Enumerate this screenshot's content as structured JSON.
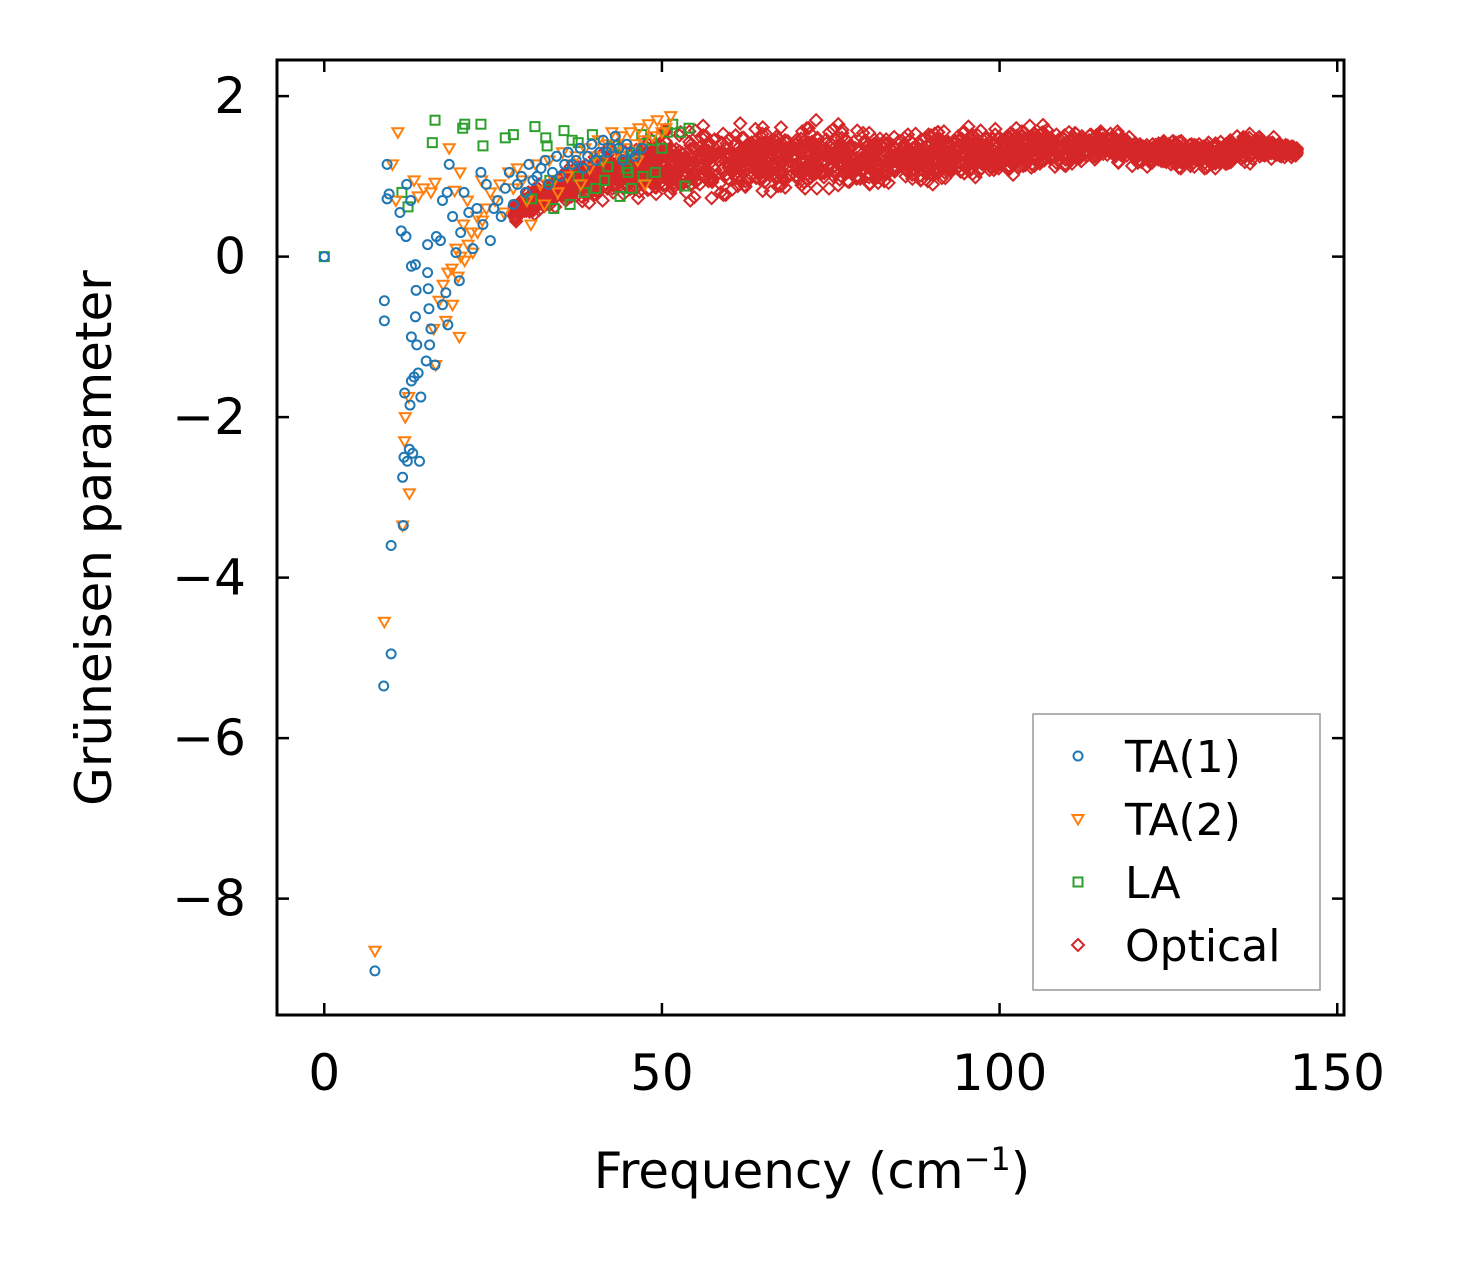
{
  "chart_data": {
    "type": "scatter",
    "xlabel": "Frequency (cm",
    "xlabel_sup": "−1",
    "xlabel_tail": ")",
    "ylabel": "Grüneisen parameter",
    "xlim": [
      -7,
      151
    ],
    "ylim": [
      -9.45,
      2.45
    ],
    "xticks": [
      0,
      50,
      100,
      150
    ],
    "xtick_labels": [
      "0",
      "50",
      "100",
      "150"
    ],
    "yticks": [
      2,
      0,
      -2,
      -4,
      -6,
      -8
    ],
    "ytick_labels": [
      "2",
      "0",
      "−2",
      "−4",
      "−6",
      "−8"
    ],
    "legend_position": "lower-right",
    "series": [
      {
        "name": "TA(1)",
        "marker": "circle",
        "color": "#1f77b4",
        "points": [
          [
            0,
            0
          ],
          [
            7.5,
            -8.9
          ],
          [
            8.8,
            -5.35
          ],
          [
            9.9,
            -4.95
          ],
          [
            9.9,
            -3.6
          ],
          [
            11.7,
            -3.35
          ],
          [
            8.9,
            -0.55
          ],
          [
            8.9,
            -0.8
          ],
          [
            9.3,
            1.15
          ],
          [
            9.3,
            0.72
          ],
          [
            9.6,
            0.78
          ],
          [
            11.2,
            0.55
          ],
          [
            11.4,
            0.32
          ],
          [
            12.1,
            0.25
          ],
          [
            12.2,
            0.9
          ],
          [
            12.8,
            0.7
          ],
          [
            11.9,
            -1.7
          ],
          [
            12.9,
            -1.55
          ],
          [
            12.7,
            -1.85
          ],
          [
            13.3,
            -1.5
          ],
          [
            13.9,
            -1.45
          ],
          [
            14.3,
            -1.75
          ],
          [
            12.9,
            -1.0
          ],
          [
            13.7,
            -1.1
          ],
          [
            13.5,
            -0.75
          ],
          [
            13.6,
            -0.42
          ],
          [
            13.5,
            -0.1
          ],
          [
            12.9,
            -0.12
          ],
          [
            11.8,
            -2.5
          ],
          [
            11.6,
            -2.75
          ],
          [
            12.3,
            -2.55
          ],
          [
            12.6,
            -2.4
          ],
          [
            13.1,
            -2.45
          ],
          [
            14.1,
            -2.55
          ],
          [
            15.1,
            -1.3
          ],
          [
            15.6,
            -1.1
          ],
          [
            15.8,
            -0.9
          ],
          [
            16.4,
            -1.35
          ],
          [
            15.4,
            -0.4
          ],
          [
            15.3,
            0.15
          ],
          [
            15.3,
            -0.2
          ],
          [
            15.5,
            -0.65
          ],
          [
            16.6,
            0.25
          ],
          [
            17.2,
            0.2
          ],
          [
            17.5,
            0.7
          ],
          [
            18.2,
            0.8
          ],
          [
            18.5,
            1.15
          ],
          [
            17.5,
            -0.6
          ],
          [
            18.0,
            -0.45
          ],
          [
            18.3,
            -0.85
          ],
          [
            19.0,
            0.5
          ],
          [
            19.5,
            0.05
          ],
          [
            20.0,
            -0.3
          ],
          [
            20.2,
            0.3
          ],
          [
            20.7,
            0.8
          ],
          [
            21.4,
            0.55
          ],
          [
            22.0,
            0.1
          ],
          [
            22.6,
            0.6
          ],
          [
            23.2,
            1.05
          ],
          [
            23.5,
            0.4
          ],
          [
            24.0,
            0.9
          ],
          [
            24.6,
            0.2
          ],
          [
            25.1,
            0.6
          ],
          [
            25.7,
            0.7
          ],
          [
            26.2,
            0.5
          ],
          [
            26.8,
            0.85
          ],
          [
            27.4,
            1.05
          ],
          [
            28.0,
            0.65
          ],
          [
            28.6,
            0.9
          ],
          [
            29.2,
            1.0
          ],
          [
            29.8,
            0.8
          ],
          [
            30.3,
            1.15
          ],
          [
            30.9,
            0.95
          ],
          [
            31.5,
            1.0
          ],
          [
            32.1,
            1.1
          ],
          [
            32.7,
            1.2
          ],
          [
            33.2,
            0.9
          ],
          [
            33.8,
            1.05
          ],
          [
            34.4,
            1.25
          ],
          [
            35.0,
            1.0
          ],
          [
            35.6,
            1.15
          ],
          [
            36.1,
            1.3
          ],
          [
            36.7,
            1.15
          ],
          [
            37.3,
            1.2
          ],
          [
            37.9,
            1.35
          ],
          [
            38.4,
            1.1
          ],
          [
            39.0,
            1.25
          ],
          [
            39.6,
            1.4
          ],
          [
            40.2,
            1.2
          ],
          [
            40.8,
            1.3
          ],
          [
            41.3,
            1.45
          ],
          [
            41.9,
            1.3
          ],
          [
            42.5,
            1.35
          ],
          [
            43.1,
            1.5
          ],
          [
            43.6,
            1.35
          ],
          [
            44.2,
            1.2
          ],
          [
            44.8,
            1.4
          ],
          [
            45.4,
            1.3
          ],
          [
            46.0,
            1.25
          ],
          [
            47.0,
            1.35
          ]
        ]
      },
      {
        "name": "TA(2)",
        "marker": "triangle-down",
        "color": "#ff7f0e",
        "points": [
          [
            7.5,
            -8.65
          ],
          [
            8.9,
            -4.55
          ],
          [
            11.6,
            -3.35
          ],
          [
            12.6,
            -2.95
          ],
          [
            11.9,
            -2.3
          ],
          [
            12.0,
            -2.0
          ],
          [
            12.5,
            -1.75
          ],
          [
            10.9,
            1.55
          ],
          [
            10.6,
            0.7
          ],
          [
            10.1,
            1.15
          ],
          [
            13.3,
            0.95
          ],
          [
            13.9,
            0.75
          ],
          [
            14.7,
            0.85
          ],
          [
            15.8,
            0.8
          ],
          [
            16.4,
            0.92
          ],
          [
            19.3,
            0.82
          ],
          [
            20.1,
            1.05
          ],
          [
            21.2,
            0.7
          ],
          [
            21.8,
            0.3
          ],
          [
            22.6,
            0.5
          ],
          [
            23.3,
            0.95
          ],
          [
            17.0,
            -0.55
          ],
          [
            17.6,
            -0.35
          ],
          [
            18.3,
            -0.2
          ],
          [
            18.9,
            -0.15
          ],
          [
            19.5,
            0.1
          ],
          [
            20.2,
            0.0
          ],
          [
            20.8,
            -0.05
          ],
          [
            16.2,
            -0.9
          ],
          [
            16.5,
            -1.35
          ],
          [
            18.0,
            -0.8
          ],
          [
            19.0,
            -0.6
          ],
          [
            19.8,
            -0.25
          ],
          [
            20.0,
            -1.0
          ],
          [
            18.5,
            1.35
          ],
          [
            20.6,
            0.4
          ],
          [
            21.3,
            0.15
          ],
          [
            22.0,
            0.05
          ],
          [
            22.7,
            0.3
          ],
          [
            23.4,
            0.45
          ],
          [
            24.0,
            0.6
          ],
          [
            24.6,
            0.8
          ],
          [
            25.3,
            0.7
          ],
          [
            26.0,
            0.9
          ],
          [
            26.6,
            0.55
          ],
          [
            27.3,
            1.05
          ],
          [
            28.0,
            0.85
          ],
          [
            28.6,
            1.1
          ],
          [
            29.3,
            0.95
          ],
          [
            30.0,
            0.7
          ],
          [
            30.6,
            0.4
          ],
          [
            31.3,
            1.15
          ],
          [
            32.0,
            0.9
          ],
          [
            32.6,
            0.65
          ],
          [
            33.3,
            1.2
          ],
          [
            34.0,
            0.95
          ],
          [
            34.6,
            0.8
          ],
          [
            35.3,
            1.3
          ],
          [
            36.0,
            1.0
          ],
          [
            36.6,
            1.15
          ],
          [
            37.3,
            1.25
          ],
          [
            38.0,
            0.9
          ],
          [
            38.6,
            1.35
          ],
          [
            39.3,
            1.1
          ],
          [
            40.0,
            1.25
          ],
          [
            40.6,
            1.45
          ],
          [
            41.3,
            1.2
          ],
          [
            42.0,
            1.4
          ],
          [
            42.6,
            1.55
          ],
          [
            43.3,
            1.3
          ],
          [
            44.0,
            1.5
          ],
          [
            44.6,
            1.35
          ],
          [
            45.3,
            1.55
          ],
          [
            46.0,
            1.4
          ],
          [
            46.6,
            1.6
          ],
          [
            47.3,
            1.45
          ],
          [
            48.0,
            1.65
          ],
          [
            48.6,
            1.5
          ],
          [
            49.3,
            1.7
          ],
          [
            50.0,
            1.55
          ],
          [
            50.6,
            1.6
          ],
          [
            51.3,
            1.75
          ],
          [
            47.5,
            0.9
          ],
          [
            46.4,
            1.2
          ]
        ]
      },
      {
        "name": "LA",
        "marker": "square",
        "color": "#2ca02c",
        "points": [
          [
            0,
            0
          ],
          [
            11.5,
            0.8
          ],
          [
            12.4,
            0.62
          ],
          [
            16.4,
            1.7
          ],
          [
            16.0,
            1.42
          ],
          [
            20.5,
            1.6
          ],
          [
            20.8,
            1.65
          ],
          [
            23.2,
            1.65
          ],
          [
            23.5,
            1.38
          ],
          [
            26.8,
            1.48
          ],
          [
            28.0,
            1.52
          ],
          [
            31.2,
            1.62
          ],
          [
            32.8,
            1.48
          ],
          [
            33.0,
            1.38
          ],
          [
            35.5,
            1.57
          ],
          [
            36.7,
            1.45
          ],
          [
            37.6,
            1.42
          ],
          [
            39.7,
            1.52
          ],
          [
            40.7,
            1.2
          ],
          [
            42.0,
            1.12
          ],
          [
            42.9,
            1.38
          ],
          [
            44.4,
            1.25
          ],
          [
            45.0,
            1.05
          ],
          [
            46.2,
            1.3
          ],
          [
            47.0,
            1.52
          ],
          [
            48.5,
            1.45
          ],
          [
            50.0,
            1.35
          ],
          [
            50.8,
            1.55
          ],
          [
            51.6,
            1.65
          ],
          [
            52.8,
            1.55
          ],
          [
            54.0,
            1.6
          ],
          [
            53.4,
            0.88
          ],
          [
            34.0,
            0.6
          ],
          [
            36.4,
            0.65
          ],
          [
            38.5,
            0.8
          ],
          [
            40.2,
            0.85
          ],
          [
            43.8,
            0.75
          ],
          [
            45.5,
            0.85
          ],
          [
            47.2,
            1.0
          ],
          [
            49.0,
            1.05
          ],
          [
            30.7,
            0.72
          ],
          [
            33.4,
            0.95
          ],
          [
            37.6,
            1.0
          ],
          [
            41.5,
            0.95
          ],
          [
            44.8,
            1.1
          ]
        ]
      },
      {
        "name": "Optical",
        "marker": "diamond",
        "color": "#d62728",
        "points": []
      }
    ],
    "optical_band": {
      "x_from": 28,
      "x_to": 144,
      "count": 2200,
      "profile_x": [
        28,
        35,
        42,
        50,
        58,
        66,
        74,
        82,
        90,
        98,
        106,
        114,
        122,
        130,
        136,
        140,
        144
      ],
      "profile_y": [
        0.55,
        0.85,
        1.0,
        1.12,
        1.2,
        1.25,
        1.25,
        1.2,
        1.25,
        1.3,
        1.35,
        1.4,
        1.3,
        1.25,
        1.35,
        1.35,
        1.3
      ],
      "profile_spread": [
        0.15,
        0.3,
        0.4,
        0.55,
        0.6,
        0.5,
        0.5,
        0.45,
        0.45,
        0.45,
        0.35,
        0.25,
        0.2,
        0.25,
        0.25,
        0.2,
        0.1
      ]
    }
  }
}
